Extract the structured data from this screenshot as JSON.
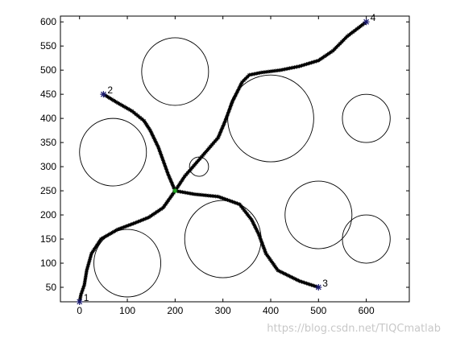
{
  "chart_data": {
    "type": "scatter",
    "title": "",
    "xlabel": "",
    "ylabel": "",
    "xlim": [
      -40,
      690
    ],
    "ylim": [
      20,
      612
    ],
    "xticks": [
      0,
      100,
      200,
      300,
      400,
      500,
      600
    ],
    "yticks": [
      50,
      100,
      150,
      200,
      250,
      300,
      350,
      400,
      450,
      500,
      550,
      600
    ],
    "grid": false,
    "obstacles": [
      {
        "x": 200,
        "y": 497,
        "r": 70
      },
      {
        "x": 70,
        "y": 330,
        "r": 70
      },
      {
        "x": 400,
        "y": 400,
        "r": 90
      },
      {
        "x": 600,
        "y": 400,
        "r": 50
      },
      {
        "x": 250,
        "y": 300,
        "r": 20
      },
      {
        "x": 500,
        "y": 200,
        "r": 70
      },
      {
        "x": 600,
        "y": 150,
        "r": 50
      },
      {
        "x": 100,
        "y": 100,
        "r": 70
      },
      {
        "x": 300,
        "y": 150,
        "r": 80
      }
    ],
    "hub": {
      "x": 200,
      "y": 250
    },
    "endpoints": [
      {
        "label": "1",
        "x": 0,
        "y": 20
      },
      {
        "label": "2",
        "x": 50,
        "y": 450
      },
      {
        "label": "3",
        "x": 500,
        "y": 50
      },
      {
        "label": "4",
        "x": 600,
        "y": 600
      }
    ],
    "paths": [
      {
        "to": "1",
        "points": [
          [
            200,
            250
          ],
          [
            175,
            215
          ],
          [
            145,
            195
          ],
          [
            115,
            183
          ],
          [
            80,
            170
          ],
          [
            45,
            150
          ],
          [
            25,
            120
          ],
          [
            15,
            85
          ],
          [
            10,
            55
          ],
          [
            3,
            35
          ],
          [
            0,
            20
          ]
        ]
      },
      {
        "to": "2",
        "points": [
          [
            200,
            250
          ],
          [
            185,
            285
          ],
          [
            165,
            340
          ],
          [
            148,
            375
          ],
          [
            135,
            395
          ],
          [
            110,
            415
          ],
          [
            80,
            432
          ],
          [
            50,
            450
          ]
        ]
      },
      {
        "to": "3",
        "points": [
          [
            200,
            250
          ],
          [
            240,
            243
          ],
          [
            290,
            238
          ],
          [
            335,
            222
          ],
          [
            360,
            190
          ],
          [
            375,
            160
          ],
          [
            390,
            120
          ],
          [
            415,
            85
          ],
          [
            460,
            63
          ],
          [
            500,
            50
          ]
        ]
      },
      {
        "to": "4",
        "points": [
          [
            200,
            250
          ],
          [
            220,
            280
          ],
          [
            255,
            320
          ],
          [
            290,
            360
          ],
          [
            305,
            395
          ],
          [
            320,
            435
          ],
          [
            340,
            475
          ],
          [
            355,
            490
          ],
          [
            380,
            495
          ],
          [
            420,
            500
          ],
          [
            460,
            508
          ],
          [
            500,
            520
          ],
          [
            530,
            540
          ],
          [
            560,
            570
          ],
          [
            600,
            600
          ]
        ]
      }
    ]
  },
  "watermark": "https://blog.csdn.net/TIQCmatlab"
}
